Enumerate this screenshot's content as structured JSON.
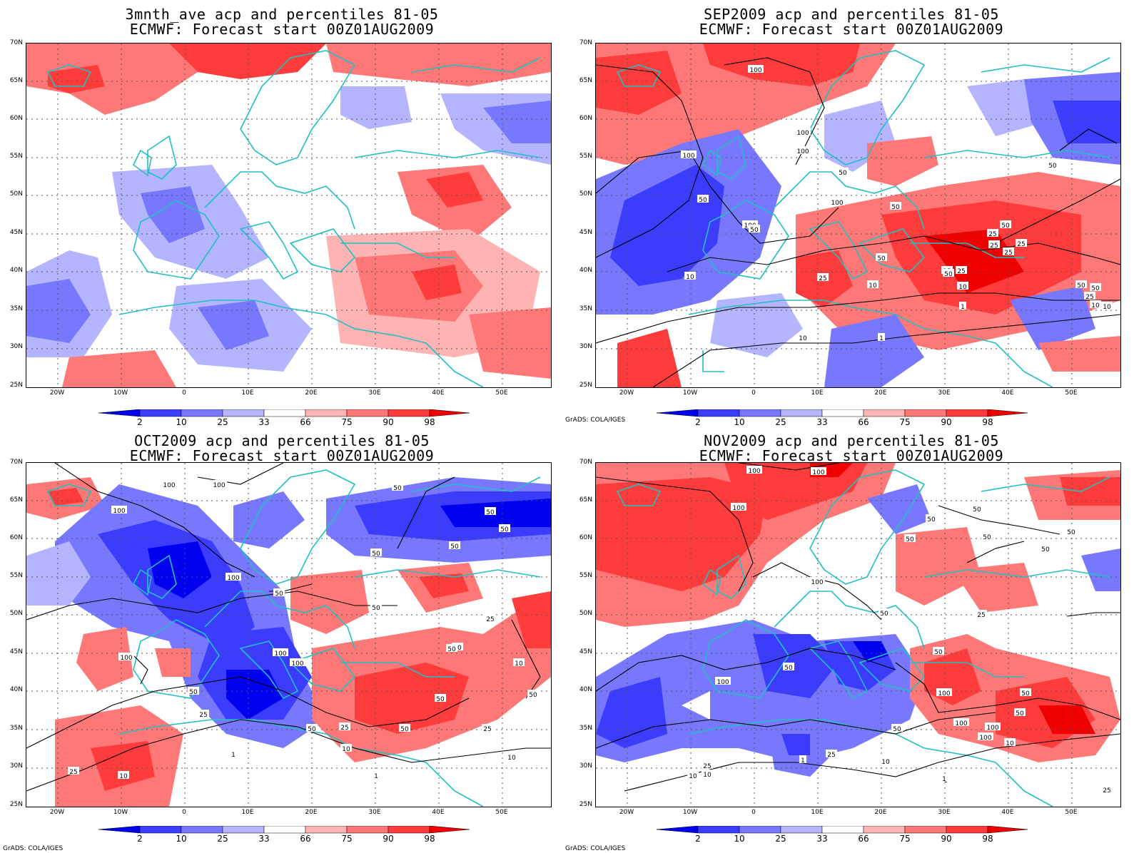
{
  "panels": [
    {
      "id": "p1",
      "title_line1": "3mnth_ave acp and percentiles 81-05",
      "title_line2": "ECMWF: Forecast start 00Z01AUG2009",
      "credit": ""
    },
    {
      "id": "p2",
      "title_line1": "SEP2009 acp and percentiles 81-05",
      "title_line2": "ECMWF: Forecast start 00Z01AUG2009",
      "credit": "GrADS: COLA/IGES"
    },
    {
      "id": "p3",
      "title_line1": "OCT2009 acp and percentiles 81-05",
      "title_line2": "ECMWF: Forecast start 00Z01AUG2009",
      "credit": "GrADS: COLA/IGES"
    },
    {
      "id": "p4",
      "title_line1": "NOV2009 acp and percentiles 81-05",
      "title_line2": "ECMWF: Forecast start 00Z01AUG2009",
      "credit": "GrADS: COLA/IGES"
    }
  ],
  "lat_ticks": [
    "70N",
    "65N",
    "60N",
    "55N",
    "50N",
    "45N",
    "40N",
    "35N",
    "30N",
    "25N"
  ],
  "lon_ticks": [
    "20W",
    "10W",
    "0",
    "10E",
    "20E",
    "30E",
    "40E",
    "50E"
  ],
  "colorbar": {
    "labels": [
      "2",
      "10",
      "25",
      "33",
      "66",
      "75",
      "90",
      "98"
    ],
    "colors": [
      "#0000f0",
      "#3c3cff",
      "#7878ff",
      "#b4b4ff",
      "#ffffff",
      "#ffb4b4",
      "#ff7878",
      "#ff3c3c",
      "#f00000"
    ]
  },
  "contour_labels": {
    "p2": [
      "100",
      "100",
      "100",
      "100",
      "50",
      "100",
      "50",
      "50",
      "100",
      "50",
      "50",
      "25",
      "10",
      "25",
      "50",
      "25",
      "10",
      "25",
      "50",
      "25",
      "25",
      "50",
      "25",
      "10",
      "10",
      "1",
      "1",
      "10",
      "50",
      "50",
      "25",
      "10"
    ],
    "p3": [
      "100",
      "100",
      "100",
      "50",
      "50",
      "50",
      "50",
      "50",
      "100",
      "50",
      "50",
      "100",
      "100",
      "100",
      "25",
      "50",
      "50",
      "50",
      "25",
      "1",
      "50",
      "25",
      "10",
      "1",
      "10",
      "25",
      "10",
      "25",
      "10",
      "50",
      "1",
      "50",
      "50",
      "10"
    ],
    "p4": [
      "100",
      "100",
      "100",
      "50",
      "50",
      "50",
      "50",
      "50",
      "50",
      "100",
      "50",
      "25",
      "50",
      "100",
      "50",
      "100",
      "50",
      "100",
      "50",
      "100",
      "100",
      "50",
      "25",
      "10",
      "1",
      "1",
      "10",
      "25",
      "10",
      "25",
      "10",
      "1"
    ]
  }
}
